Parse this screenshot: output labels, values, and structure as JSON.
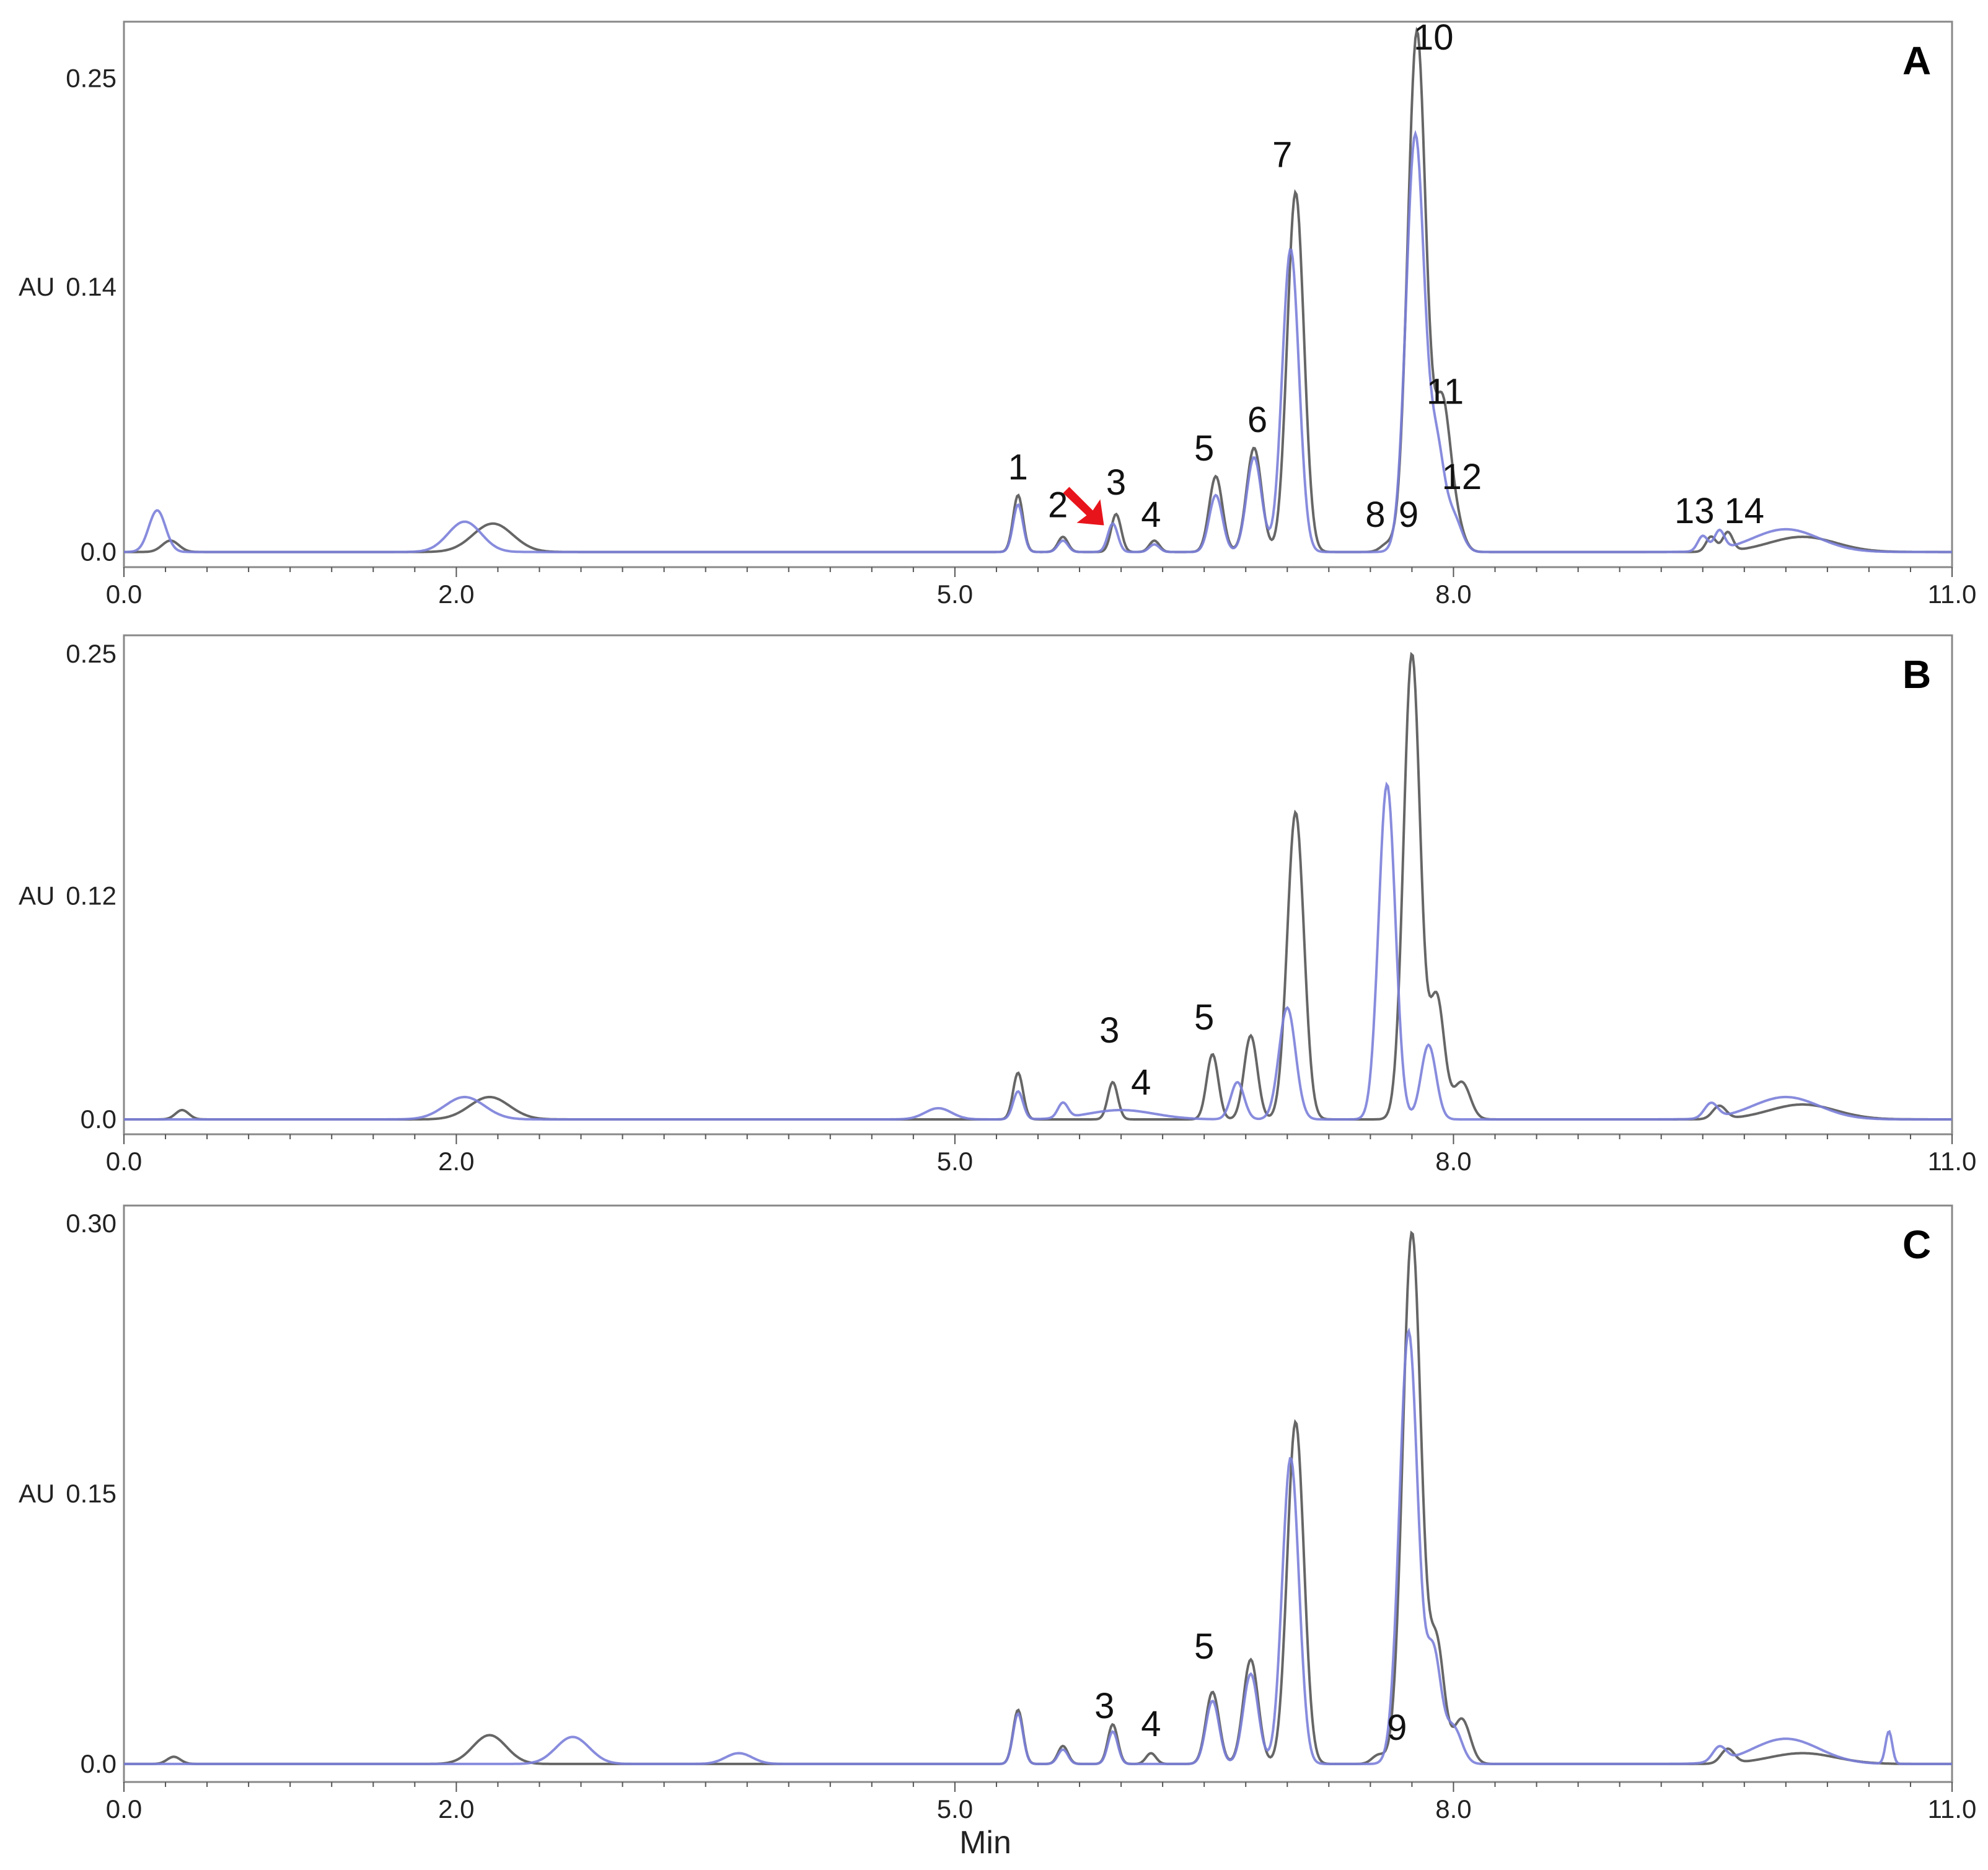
{
  "x_axis_title": "Min",
  "chart_data": [
    {
      "type": "line",
      "panel_label": "A",
      "ylabel": "AU",
      "xlim": [
        0,
        11
      ],
      "ylim": [
        -0.008,
        0.28
      ],
      "xticks": [
        0,
        2,
        5,
        8,
        11
      ],
      "xtick_labels": [
        "0.0",
        "2.0",
        "5.0",
        "8.0",
        "11.0"
      ],
      "yticks": [
        0,
        0.14,
        0.25
      ],
      "ytick_labels": [
        "0.0",
        "0.14",
        "0.25"
      ],
      "series": [
        {
          "color": "#555555",
          "baseline": 0.0,
          "peaks": [
            [
              0.28,
              0.006,
              0.05
            ],
            [
              2.22,
              0.015,
              0.12
            ],
            [
              5.38,
              0.03,
              0.03
            ],
            [
              5.65,
              0.008,
              0.03
            ],
            [
              5.97,
              0.02,
              0.03
            ],
            [
              6.2,
              0.006,
              0.03
            ],
            [
              6.57,
              0.04,
              0.04
            ],
            [
              6.8,
              0.055,
              0.045
            ],
            [
              7.05,
              0.19,
              0.05
            ],
            [
              7.6,
              0.004,
              0.04
            ],
            [
              7.78,
              0.275,
              0.055
            ],
            [
              7.93,
              0.07,
              0.045
            ],
            [
              8.0,
              0.02,
              0.05
            ],
            [
              9.55,
              0.008,
              0.03
            ],
            [
              9.65,
              0.01,
              0.03
            ],
            [
              10.1,
              0.008,
              0.2
            ]
          ]
        },
        {
          "color": "#7b7fd9",
          "baseline": 0.0,
          "peaks": [
            [
              0.2,
              0.022,
              0.05
            ],
            [
              2.05,
              0.016,
              0.1
            ],
            [
              5.38,
              0.025,
              0.03
            ],
            [
              5.65,
              0.006,
              0.03
            ],
            [
              5.95,
              0.015,
              0.03
            ],
            [
              6.2,
              0.004,
              0.03
            ],
            [
              6.57,
              0.03,
              0.04
            ],
            [
              6.8,
              0.05,
              0.045
            ],
            [
              7.02,
              0.16,
              0.05
            ],
            [
              7.77,
              0.22,
              0.055
            ],
            [
              7.9,
              0.05,
              0.045
            ],
            [
              8.0,
              0.018,
              0.05
            ],
            [
              9.5,
              0.008,
              0.03
            ],
            [
              9.6,
              0.01,
              0.03
            ],
            [
              10.0,
              0.012,
              0.2
            ]
          ]
        }
      ],
      "annotations": [
        "1",
        "2",
        "3",
        "4",
        "5",
        "6",
        "7",
        "8",
        "9",
        "10",
        "11",
        "12",
        "13",
        "14"
      ]
    },
    {
      "type": "line",
      "panel_label": "B",
      "ylabel": "AU",
      "xlim": [
        0,
        11
      ],
      "ylim": [
        -0.008,
        0.26
      ],
      "xticks": [
        0,
        2,
        5,
        8,
        11
      ],
      "xtick_labels": [
        "0.0",
        "2.0",
        "5.0",
        "8.0",
        "11.0"
      ],
      "yticks": [
        0,
        0.12,
        0.25
      ],
      "ytick_labels": [
        "0.0",
        "0.12",
        "0.25"
      ],
      "series": [
        {
          "color": "#555555",
          "baseline": 0.0,
          "peaks": [
            [
              0.35,
              0.005,
              0.04
            ],
            [
              2.2,
              0.012,
              0.12
            ],
            [
              5.38,
              0.025,
              0.03
            ],
            [
              5.95,
              0.02,
              0.03
            ],
            [
              6.55,
              0.035,
              0.035
            ],
            [
              6.78,
              0.045,
              0.04
            ],
            [
              7.05,
              0.165,
              0.05
            ],
            [
              7.75,
              0.25,
              0.05
            ],
            [
              7.9,
              0.065,
              0.045
            ],
            [
              8.05,
              0.02,
              0.05
            ],
            [
              9.6,
              0.007,
              0.04
            ],
            [
              10.1,
              0.008,
              0.2
            ]
          ]
        },
        {
          "color": "#7b7fd9",
          "baseline": 0.0,
          "peaks": [
            [
              2.05,
              0.012,
              0.12
            ],
            [
              4.9,
              0.006,
              0.08
            ],
            [
              5.38,
              0.015,
              0.03
            ],
            [
              5.65,
              0.008,
              0.03
            ],
            [
              6.0,
              0.005,
              0.2
            ],
            [
              6.7,
              0.02,
              0.04
            ],
            [
              7.0,
              0.06,
              0.05
            ],
            [
              7.6,
              0.18,
              0.05
            ],
            [
              7.85,
              0.04,
              0.045
            ],
            [
              9.55,
              0.008,
              0.04
            ],
            [
              10.0,
              0.012,
              0.2
            ]
          ]
        }
      ],
      "annotations": [
        "3",
        "4",
        "5"
      ]
    },
    {
      "type": "line",
      "panel_label": "C",
      "ylabel": "AU",
      "xlim": [
        0,
        11
      ],
      "ylim": [
        -0.01,
        0.31
      ],
      "xticks": [
        0,
        2,
        5,
        8,
        11
      ],
      "xtick_labels": [
        "0.0",
        "2.0",
        "5.0",
        "8.0",
        "11.0"
      ],
      "yticks": [
        0,
        0.15,
        0.3
      ],
      "ytick_labels": [
        "0.0",
        "0.15",
        "0.30"
      ],
      "series": [
        {
          "color": "#555555",
          "baseline": 0.0,
          "peaks": [
            [
              0.3,
              0.004,
              0.04
            ],
            [
              2.2,
              0.016,
              0.1
            ],
            [
              5.38,
              0.03,
              0.03
            ],
            [
              5.65,
              0.01,
              0.03
            ],
            [
              5.95,
              0.022,
              0.03
            ],
            [
              6.18,
              0.006,
              0.03
            ],
            [
              6.55,
              0.04,
              0.04
            ],
            [
              6.78,
              0.058,
              0.045
            ],
            [
              7.05,
              0.19,
              0.05
            ],
            [
              7.55,
              0.005,
              0.04
            ],
            [
              7.75,
              0.295,
              0.055
            ],
            [
              7.9,
              0.065,
              0.045
            ],
            [
              8.05,
              0.025,
              0.05
            ],
            [
              9.65,
              0.008,
              0.04
            ],
            [
              10.1,
              0.006,
              0.2
            ]
          ]
        },
        {
          "color": "#7b7fd9",
          "baseline": 0.0,
          "peaks": [
            [
              2.7,
              0.015,
              0.1
            ],
            [
              3.7,
              0.006,
              0.08
            ],
            [
              5.38,
              0.028,
              0.03
            ],
            [
              5.65,
              0.008,
              0.03
            ],
            [
              5.95,
              0.018,
              0.03
            ],
            [
              6.55,
              0.035,
              0.04
            ],
            [
              6.78,
              0.05,
              0.045
            ],
            [
              7.02,
              0.17,
              0.05
            ],
            [
              7.73,
              0.24,
              0.055
            ],
            [
              7.88,
              0.06,
              0.045
            ],
            [
              8.0,
              0.02,
              0.05
            ],
            [
              9.6,
              0.008,
              0.04
            ],
            [
              10.0,
              0.014,
              0.2
            ],
            [
              10.62,
              0.018,
              0.02
            ]
          ]
        }
      ],
      "annotations": [
        "3",
        "4",
        "5",
        "9"
      ]
    }
  ]
}
